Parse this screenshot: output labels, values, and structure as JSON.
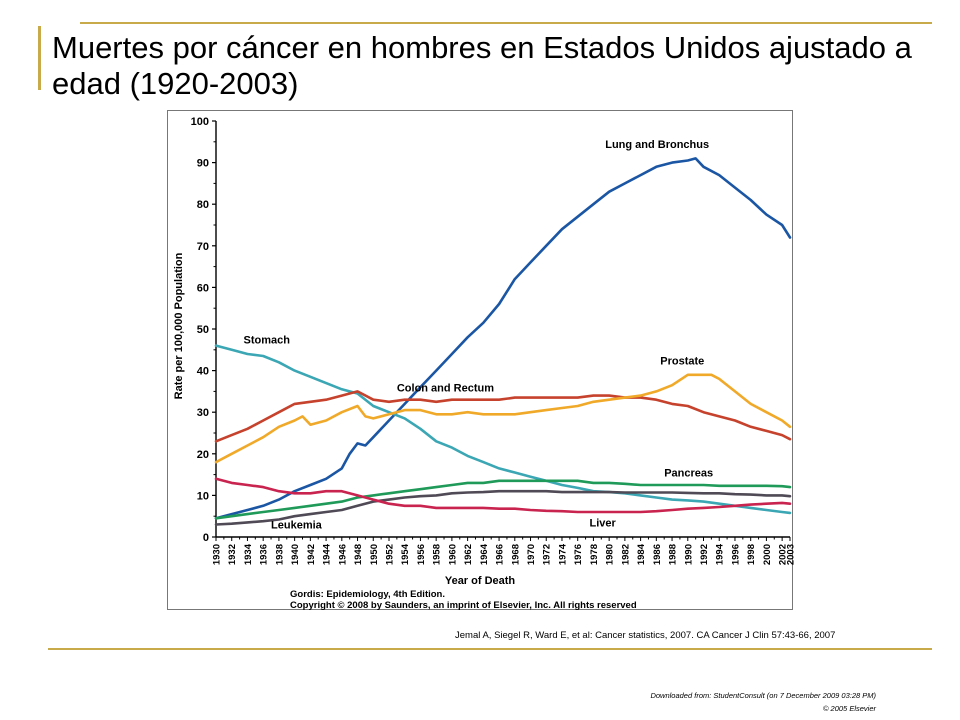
{
  "slide": {
    "title": "Muertes por cáncer en hombres en Estados Unidos ajustado a edad (1920-2003)",
    "citation": "Jemal A, Siegel R, Ward E, et al: Cancer statistics, 2007. CA Cancer J Clin 57:43-66, 2007",
    "download_note": "Downloaded from: StudentConsult (on 7 December 2009 03:28 PM)",
    "copyright_note": "© 2005 Elsevier",
    "accent_color": "#c9aa4b"
  },
  "chart_data": {
    "type": "line",
    "xlabel": "Year of Death",
    "ylabel": "Rate per 100,000 Population",
    "xlim": [
      1930,
      2003
    ],
    "ylim": [
      0,
      100
    ],
    "x_ticks": [
      "1930",
      "1932",
      "1934",
      "1936",
      "1938",
      "1940",
      "1942",
      "1944",
      "1946",
      "1948",
      "1950",
      "1952",
      "1954",
      "1956",
      "1958",
      "1960",
      "1962",
      "1964",
      "1966",
      "1968",
      "1970",
      "1972",
      "1974",
      "1976",
      "1978",
      "1980",
      "1982",
      "1984",
      "1986",
      "1988",
      "1990",
      "1992",
      "1994",
      "1996",
      "1998",
      "2000",
      "2002",
      "2003"
    ],
    "y_ticks": [
      "0",
      "10",
      "20",
      "30",
      "40",
      "50",
      "60",
      "70",
      "80",
      "90",
      "100"
    ],
    "grid": false,
    "source": [
      "Gordis: Epidemiology, 4th Edition.",
      "Copyright © 2008 by Saunders, an imprint of Elsevier, Inc. All rights reserved"
    ],
    "series": [
      {
        "name": "Lung and Bronchus",
        "color": "#1b56a4",
        "x": [
          1930,
          1932,
          1934,
          1936,
          1938,
          1940,
          1942,
          1944,
          1946,
          1947,
          1948,
          1949,
          1950,
          1952,
          1954,
          1956,
          1958,
          1960,
          1962,
          1964,
          1966,
          1968,
          1970,
          1972,
          1974,
          1976,
          1978,
          1980,
          1982,
          1984,
          1986,
          1988,
          1990,
          1991,
          1992,
          1994,
          1996,
          1998,
          2000,
          2002,
          2003
        ],
        "y": [
          4.5,
          5.5,
          6.5,
          7.5,
          9,
          11,
          12.5,
          14,
          16.5,
          20,
          22.5,
          22,
          24,
          28,
          32,
          36,
          40,
          44,
          48,
          51.5,
          56,
          62,
          66,
          70,
          74,
          77,
          80,
          83,
          85,
          87,
          89,
          90,
          90.5,
          91,
          89,
          87,
          84,
          81,
          77.5,
          75,
          72
        ]
      },
      {
        "name": "Stomach",
        "color": "#3ba6b4",
        "x": [
          1930,
          1932,
          1934,
          1936,
          1938,
          1940,
          1942,
          1944,
          1946,
          1948,
          1950,
          1952,
          1954,
          1956,
          1958,
          1960,
          1962,
          1964,
          1966,
          1968,
          1970,
          1972,
          1974,
          1976,
          1978,
          1980,
          1982,
          1984,
          1986,
          1988,
          1990,
          1992,
          1994,
          1996,
          1998,
          2000,
          2002,
          2003
        ],
        "y": [
          46,
          45,
          44,
          43.5,
          42,
          40,
          38.5,
          37,
          35.5,
          34.5,
          31.5,
          30,
          28.5,
          26,
          23,
          21.5,
          19.5,
          18,
          16.5,
          15.5,
          14.5,
          13.5,
          12.5,
          11.8,
          11,
          10.8,
          10.5,
          10,
          9.5,
          9,
          8.8,
          8.5,
          8,
          7.5,
          7,
          6.5,
          6,
          5.8
        ]
      },
      {
        "name": "Colon and Rectum",
        "color": "#c6422c",
        "x": [
          1930,
          1932,
          1934,
          1936,
          1938,
          1940,
          1942,
          1944,
          1946,
          1948,
          1950,
          1952,
          1954,
          1956,
          1958,
          1960,
          1962,
          1964,
          1966,
          1968,
          1970,
          1972,
          1974,
          1976,
          1978,
          1980,
          1982,
          1984,
          1986,
          1988,
          1990,
          1992,
          1994,
          1996,
          1998,
          2000,
          2002,
          2003
        ],
        "y": [
          23,
          24.5,
          26,
          28,
          30,
          32,
          32.5,
          33,
          34,
          35,
          33,
          32.5,
          33,
          33,
          32.5,
          33,
          33,
          33,
          33,
          33.5,
          33.5,
          33.5,
          33.5,
          33.5,
          34,
          34,
          33.5,
          33.5,
          33,
          32,
          31.5,
          30,
          29,
          28,
          26.5,
          25.5,
          24.5,
          23.5
        ]
      },
      {
        "name": "Prostate",
        "color": "#f0a929",
        "x": [
          1930,
          1932,
          1934,
          1936,
          1938,
          1940,
          1941,
          1942,
          1944,
          1946,
          1948,
          1949,
          1950,
          1952,
          1954,
          1956,
          1958,
          1960,
          1962,
          1964,
          1966,
          1968,
          1970,
          1972,
          1974,
          1976,
          1978,
          1980,
          1982,
          1984,
          1986,
          1988,
          1990,
          1992,
          1993,
          1994,
          1996,
          1998,
          2000,
          2002,
          2003
        ],
        "y": [
          18,
          20,
          22,
          24,
          26.5,
          28,
          29,
          27,
          28,
          30,
          31.5,
          29,
          28.5,
          29.5,
          30.5,
          30.5,
          29.5,
          29.5,
          30,
          29.5,
          29.5,
          29.5,
          30,
          30.5,
          31,
          31.5,
          32.5,
          33,
          33.5,
          34,
          35,
          36.5,
          39,
          39,
          39,
          38,
          35,
          32,
          30,
          28,
          26.5
        ]
      },
      {
        "name": "Pancreas",
        "color": "#1f9a58",
        "x": [
          1930,
          1932,
          1934,
          1936,
          1938,
          1940,
          1942,
          1944,
          1946,
          1948,
          1950,
          1952,
          1954,
          1956,
          1958,
          1960,
          1962,
          1964,
          1966,
          1968,
          1970,
          1972,
          1974,
          1976,
          1978,
          1980,
          1982,
          1984,
          1986,
          1988,
          1990,
          1992,
          1994,
          1996,
          1998,
          2000,
          2002,
          2003
        ],
        "y": [
          4.5,
          5,
          5.5,
          6,
          6.5,
          7,
          7.5,
          8,
          8.5,
          9.5,
          10,
          10.5,
          11,
          11.5,
          12,
          12.5,
          13,
          13,
          13.5,
          13.5,
          13.5,
          13.5,
          13.5,
          13.5,
          13,
          13,
          12.8,
          12.5,
          12.5,
          12.5,
          12.5,
          12.5,
          12.3,
          12.3,
          12.3,
          12.3,
          12.2,
          12
        ]
      },
      {
        "name": "Leukemia",
        "color": "#4f4a55",
        "x": [
          1930,
          1932,
          1934,
          1936,
          1938,
          1940,
          1942,
          1944,
          1946,
          1948,
          1950,
          1952,
          1954,
          1956,
          1958,
          1960,
          1962,
          1964,
          1966,
          1968,
          1970,
          1972,
          1974,
          1976,
          1978,
          1980,
          1982,
          1984,
          1986,
          1988,
          1990,
          1992,
          1994,
          1996,
          1998,
          2000,
          2002,
          2003
        ],
        "y": [
          3,
          3.2,
          3.5,
          3.8,
          4.2,
          5,
          5.5,
          6,
          6.5,
          7.5,
          8.5,
          9,
          9.5,
          9.8,
          10,
          10.5,
          10.7,
          10.8,
          11,
          11,
          11,
          11,
          10.8,
          10.8,
          10.8,
          10.8,
          10.7,
          10.7,
          10.7,
          10.7,
          10.6,
          10.5,
          10.5,
          10.3,
          10.2,
          10,
          10,
          9.8
        ]
      },
      {
        "name": "Liver",
        "color": "#c9234f",
        "x": [
          1930,
          1932,
          1934,
          1936,
          1938,
          1940,
          1942,
          1944,
          1946,
          1948,
          1950,
          1952,
          1954,
          1956,
          1958,
          1960,
          1962,
          1964,
          1966,
          1968,
          1970,
          1972,
          1974,
          1976,
          1978,
          1980,
          1982,
          1984,
          1986,
          1988,
          1990,
          1992,
          1994,
          1996,
          1998,
          2000,
          2002,
          2003
        ],
        "y": [
          14,
          13,
          12.5,
          12,
          11,
          10.5,
          10.5,
          11,
          11,
          10,
          9,
          8,
          7.5,
          7.5,
          7,
          7,
          7,
          7,
          6.8,
          6.8,
          6.5,
          6.3,
          6.2,
          6,
          6,
          6,
          6,
          6,
          6.2,
          6.5,
          6.8,
          7,
          7.2,
          7.5,
          7.8,
          8,
          8.2,
          8
        ]
      }
    ],
    "labels": [
      {
        "text": "Lung and Bronchus",
        "series": "Lung and Bronchus",
        "x": 1979.5,
        "y": 93.5
      },
      {
        "text": "Stomach",
        "series": "Stomach",
        "x": 1933.5,
        "y": 46.5
      },
      {
        "text": "Colon and Rectum",
        "series": "Colon and Rectum",
        "x": 1953,
        "y": 35
      },
      {
        "text": "Prostate",
        "series": "Prostate",
        "x": 1986.5,
        "y": 41.5
      },
      {
        "text": "Pancreas",
        "series": "Pancreas",
        "x": 1987,
        "y": 14.5
      },
      {
        "text": "Leukemia",
        "series": "Leukemia",
        "x": 1937,
        "y": 2
      },
      {
        "text": "Liver",
        "series": "Liver",
        "x": 1977.5,
        "y": 2.5
      }
    ]
  }
}
